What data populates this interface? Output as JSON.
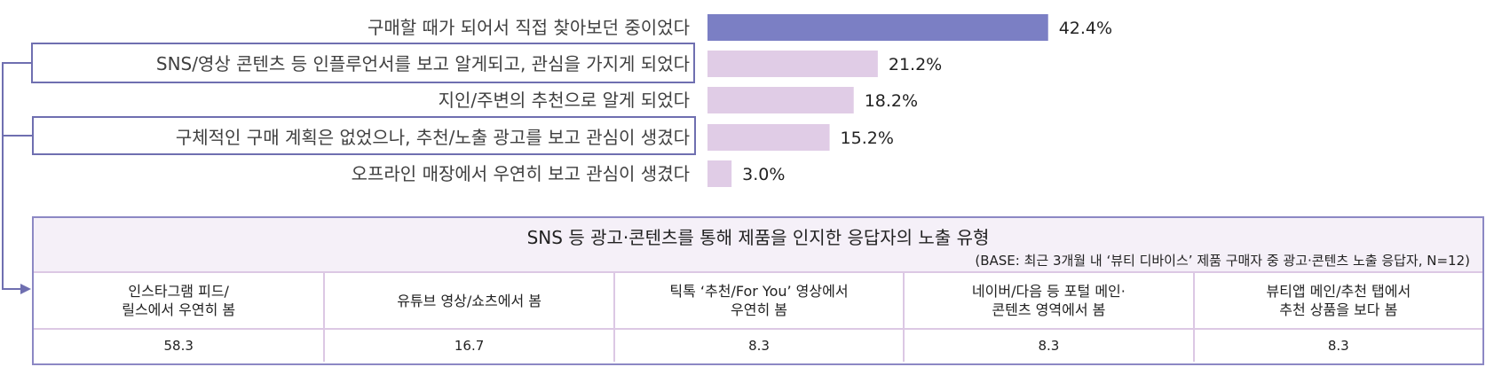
{
  "chart_data": {
    "type": "bar",
    "orientation": "horizontal",
    "categories": [
      "구매할 때가 되어서 직접 찾아보던 중이었다",
      "SNS/영상 콘텐츠 등 인플루언서를 보고 알게되고, 관심을 가지게 되었다",
      "지인/주변의 추천으로 알게 되었다",
      "구체적인 구매 계획은 없었으나, 추천/노출 광고를 보고 관심이 생겼다",
      "오프라인 매장에서 우연히 보고 관심이 생겼다"
    ],
    "values": [
      42.4,
      21.2,
      18.2,
      15.2,
      3.0
    ],
    "value_labels": [
      "42.4%",
      "21.2%",
      "18.2%",
      "15.2%",
      "3.0%"
    ],
    "highlight_color": "#7b7fc4",
    "bar_color": "#e0cce6",
    "highlighted_boxes": [
      1,
      3
    ],
    "xlim": [
      0,
      100
    ]
  },
  "table": {
    "title": "SNS 등 광고·콘텐츠를 통해 제품을 인지한 응답자의 노출 유형",
    "base": "(BASE: 최근 3개월 내 ‘뷰티 디바이스’ 제품 구매자 중 광고·콘텐츠 노출 응답자, N=12)",
    "headers": [
      "인스타그램 피드/\n릴스에서 우연히 봄",
      "유튜브 영상/쇼츠에서 봄",
      "틱톡 ‘추천/For You’ 영상에서\n우연히 봄",
      "네이버/다음 등 포털 메인·\n콘텐츠 영역에서 봄",
      "뷰티앱 메인/추천 탭에서\n추천 상품을 보다 봄"
    ],
    "values": [
      "58.3",
      "16.7",
      "8.3",
      "8.3",
      "8.3"
    ]
  },
  "colors": {
    "accent": "#6f6fb0",
    "table_border": "#8c88c4",
    "header_bg": "#f5f0f8"
  }
}
